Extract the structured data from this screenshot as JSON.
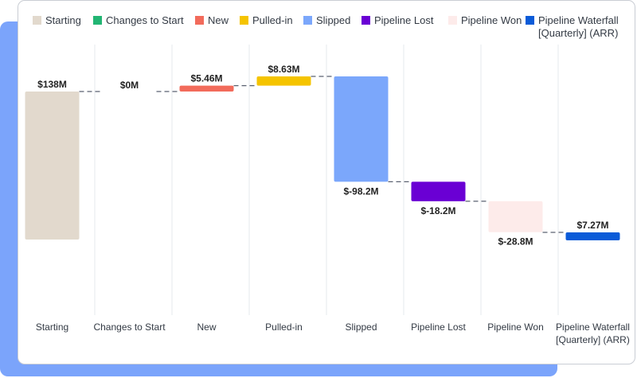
{
  "chart_data": {
    "type": "waterfall",
    "title": "",
    "xlabel": "",
    "ylabel": "",
    "categories": [
      "Starting",
      "Changes to Start",
      "New",
      "Pulled-in",
      "Slipped",
      "Pipeline Lost",
      "Pipeline Won",
      "Pipeline Waterfall [Quarterly] (ARR)"
    ],
    "category_lines": [
      [
        "Starting"
      ],
      [
        "Changes to Start"
      ],
      [
        "New"
      ],
      [
        "Pulled-in"
      ],
      [
        "Slipped"
      ],
      [
        "Pipeline Lost"
      ],
      [
        "Pipeline Won"
      ],
      [
        "Pipeline Waterfall",
        "[Quarterly] (ARR)"
      ]
    ],
    "values": [
      138,
      0,
      5.46,
      8.63,
      -98.2,
      -18.2,
      -28.8,
      7.27
    ],
    "value_labels": [
      "$138M",
      "$0M",
      "$5.46M",
      "$8.63M",
      "$-98.2M",
      "$-18.2M",
      "$-28.8M",
      "$7.27M"
    ],
    "kinds": [
      "total",
      "delta",
      "delta",
      "delta",
      "delta",
      "delta",
      "delta",
      "total"
    ],
    "units": "$M",
    "colors": [
      "#e2d9cd",
      "#22b573",
      "#f26b5b",
      "#f5c400",
      "#7ba7fb",
      "#6a00d4",
      "#fdebea",
      "#0a5bd8"
    ],
    "legend": {
      "position": "top",
      "entries": [
        {
          "name": "Starting",
          "color": "#e2d9cd"
        },
        {
          "name": "Changes to Start",
          "color": "#22b573"
        },
        {
          "name": "New",
          "color": "#f26b5b"
        },
        {
          "name": "Pulled-in",
          "color": "#f5c400"
        },
        {
          "name": "Slipped",
          "color": "#7ba7fb"
        },
        {
          "name": "Pipeline Lost",
          "color": "#6a00d4"
        },
        {
          "name": "Pipeline Won",
          "color": "#fdebea"
        },
        {
          "name": "Pipeline Waterfall [Quarterly] (ARR)",
          "lines": [
            "Pipeline Waterfall",
            "[Quarterly] (ARR)"
          ],
          "color": "#0a5bd8"
        }
      ]
    },
    "grid": {
      "vertical": true,
      "horizontal": false
    },
    "connectors": true
  }
}
